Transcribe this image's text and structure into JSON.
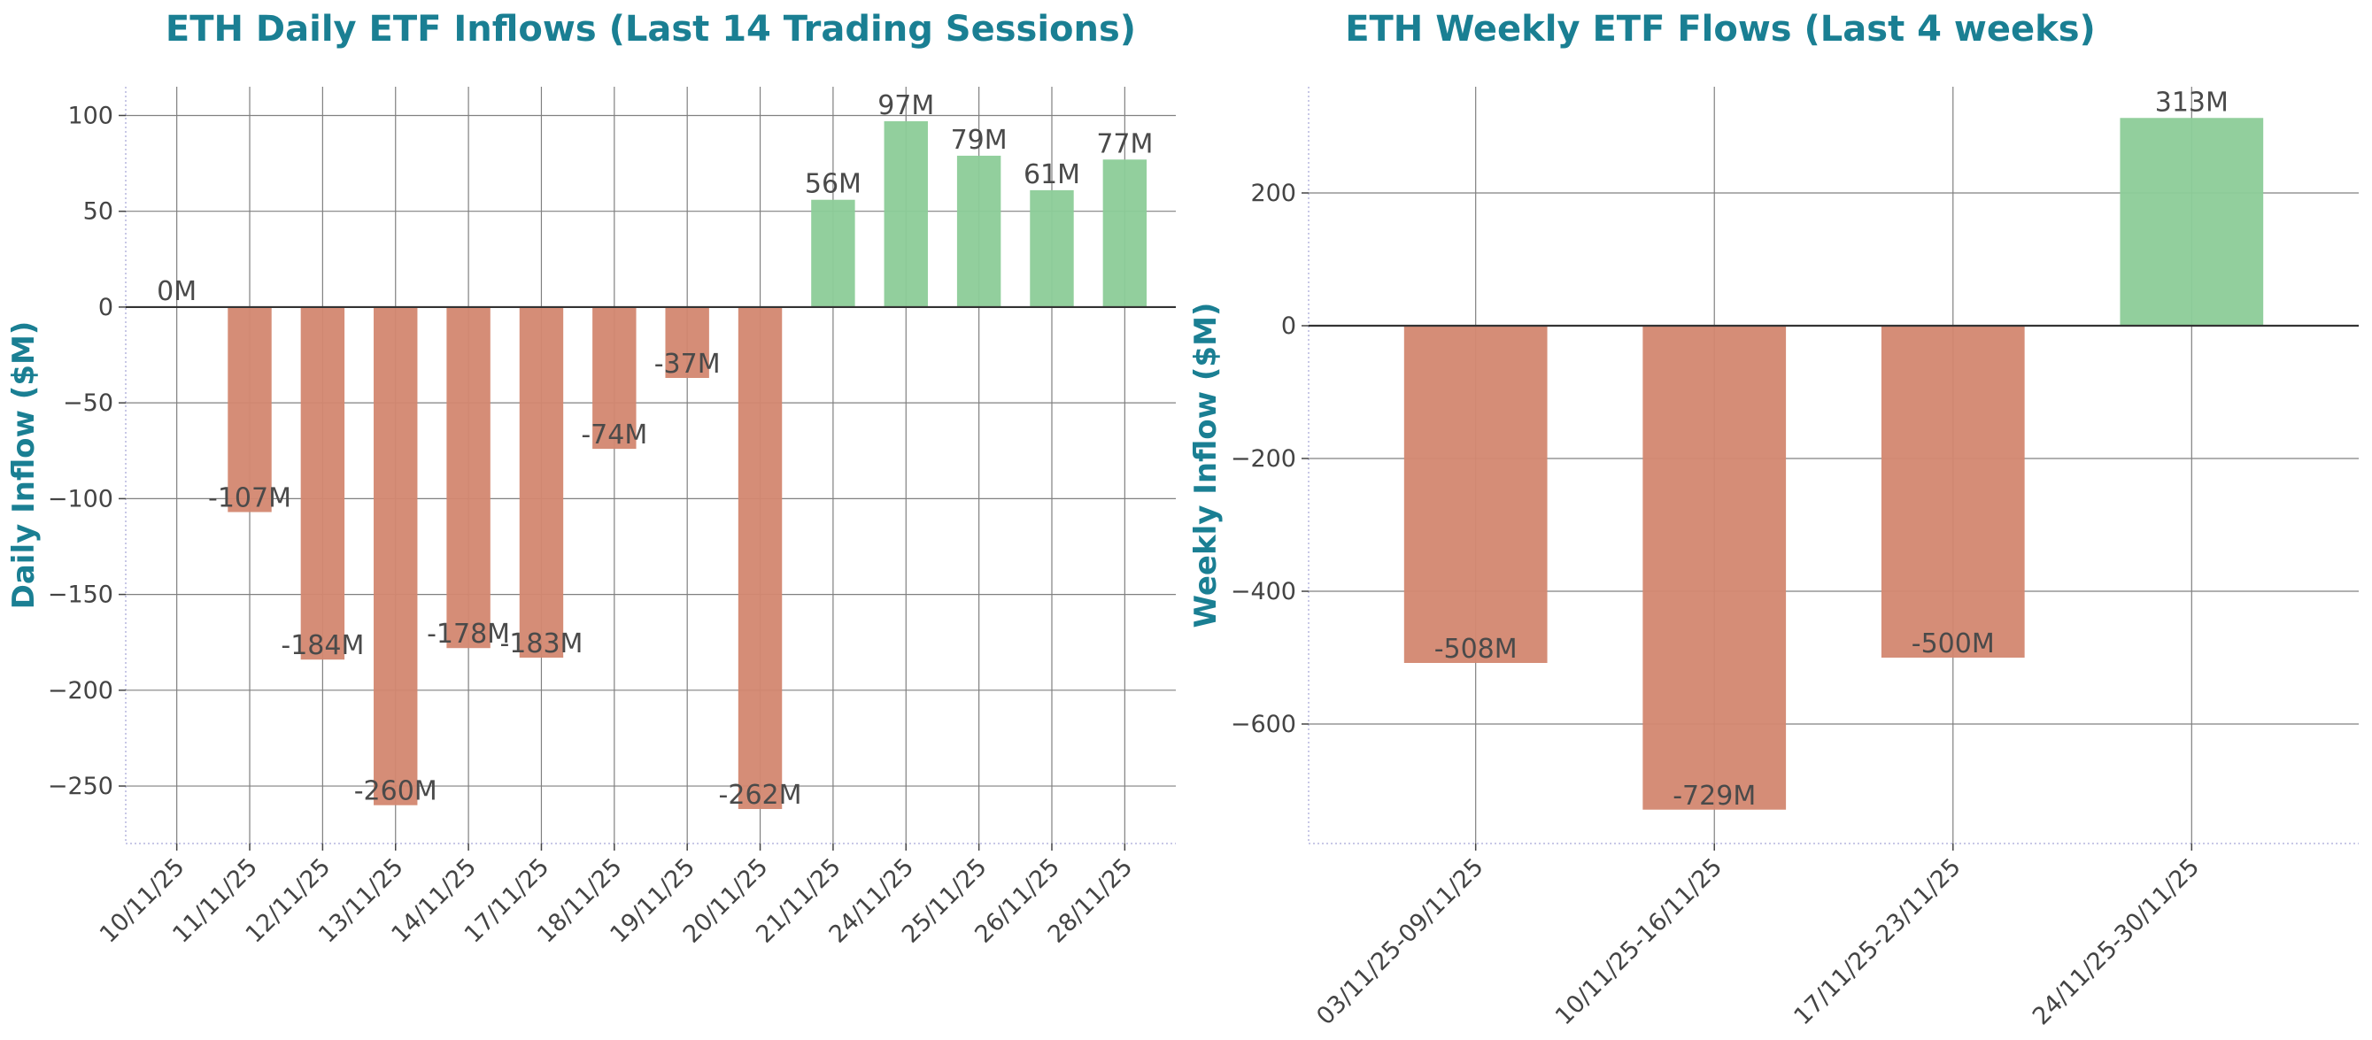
{
  "colors": {
    "title": "#1a7f93",
    "positive": "#8ccc98",
    "negative": "#d38770",
    "grid": "#808080",
    "zero_line": "#333333",
    "frame": "#c8c8e6",
    "text": "#444444"
  },
  "chart_data": [
    {
      "type": "bar",
      "title": "ETH Daily ETF Inflows (Last 14 Trading Sessions)",
      "xlabel": "",
      "ylabel": "Daily Inflow ($M)",
      "categories": [
        "10/11/25",
        "11/11/25",
        "12/11/25",
        "13/11/25",
        "14/11/25",
        "17/11/25",
        "18/11/25",
        "19/11/25",
        "20/11/25",
        "21/11/25",
        "24/11/25",
        "25/11/25",
        "26/11/25",
        "28/11/25"
      ],
      "values": [
        0,
        -107,
        -184,
        -260,
        -178,
        -183,
        -74,
        -37,
        -262,
        56,
        97,
        79,
        61,
        77
      ],
      "data_labels": [
        "0M",
        "-107M",
        "-184M",
        "-260M",
        "-178M",
        "-183M",
        "-74M",
        "-37M",
        "-262M",
        "56M",
        "97M",
        "79M",
        "61M",
        "77M"
      ],
      "ylim": [
        -280,
        115
      ],
      "yticks": [
        100,
        50,
        0,
        -50,
        -100,
        -150,
        -200,
        -250
      ],
      "ytick_labels": [
        "100",
        "50",
        "0",
        "−50",
        "−100",
        "−150",
        "−200",
        "−250"
      ],
      "grid": true,
      "legend": "none"
    },
    {
      "type": "bar",
      "title": "ETH Weekly ETF Flows (Last 4 weeks)",
      "xlabel": "",
      "ylabel": "Weekly Inflow ($M)",
      "categories": [
        "03/11/25-09/11/25",
        "10/11/25-16/11/25",
        "17/11/25-23/11/25",
        "24/11/25-30/11/25"
      ],
      "values": [
        -508,
        -729,
        -500,
        313
      ],
      "data_labels": [
        "-508M",
        "-729M",
        "-500M",
        "313M"
      ],
      "ylim": [
        -780,
        360
      ],
      "yticks": [
        200,
        0,
        -200,
        -400,
        -600
      ],
      "ytick_labels": [
        "200",
        "0",
        "−200",
        "−400",
        "−600"
      ],
      "grid": true,
      "legend": "none"
    }
  ]
}
